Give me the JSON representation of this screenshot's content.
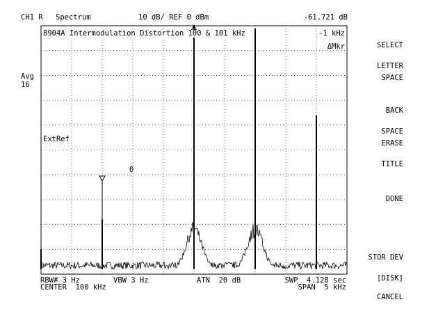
{
  "header": {
    "channel": "CH1 R",
    "measurement": "Spectrum",
    "scale_ref": "10 dB/ REF 0 dBm",
    "marker_readout": "-61.721 dB"
  },
  "title_line": "8904A Intermodulation Distortion 100 & 101 kHz",
  "delta_readout": "-1 kHz",
  "delta_marker_label": "ΔMkr",
  "avg_label": "Avg",
  "avg_count": "16",
  "extref_label": "ExtRef",
  "marker_zero_label": "0",
  "footer": {
    "rbw": "RBW# 3 Hz",
    "vbw": "VBW 3 Hz",
    "atn": "ATN  20 dB",
    "swp": "SWP  4.128 sec",
    "center": "CENTER  100 kHz",
    "span": "SPAN  5 kHz"
  },
  "softkeys": [
    {
      "lines": [
        "SELECT",
        "LETTER"
      ]
    },
    {
      "lines": [
        "SPACE"
      ]
    },
    {
      "lines": [
        "BACK",
        "SPACE"
      ]
    },
    {
      "lines": [
        "ERASE",
        "TITLE"
      ]
    },
    {
      "lines": [
        "DONE"
      ]
    },
    {
      "lines": [
        "STOR DEV",
        "[DISK]"
      ]
    },
    {
      "lines": [
        "CANCEL"
      ]
    }
  ],
  "chart_data": {
    "type": "line",
    "x_unit": "kHz",
    "y_unit": "dBm",
    "xlim": [
      97.5,
      102.5
    ],
    "ylim": [
      -100,
      0
    ],
    "grid": true,
    "y_divisions": 10,
    "x_divisions": 10,
    "peaks": [
      {
        "x": 97.5,
        "y": -90
      },
      {
        "x": 98.5,
        "y": -78
      },
      {
        "x": 99.0,
        "y": -98
      },
      {
        "x": 100.0,
        "y": 0
      },
      {
        "x": 101.0,
        "y": -1
      },
      {
        "x": 102.0,
        "y": -36
      }
    ],
    "sideband_clusters": [
      {
        "x": 100.0,
        "y": -82
      },
      {
        "x": 101.0,
        "y": -82
      }
    ],
    "noise_floor": -98,
    "markers": [
      {
        "label": "0",
        "x": 98.5
      },
      {
        "label": "",
        "x": 100.0
      }
    ]
  }
}
